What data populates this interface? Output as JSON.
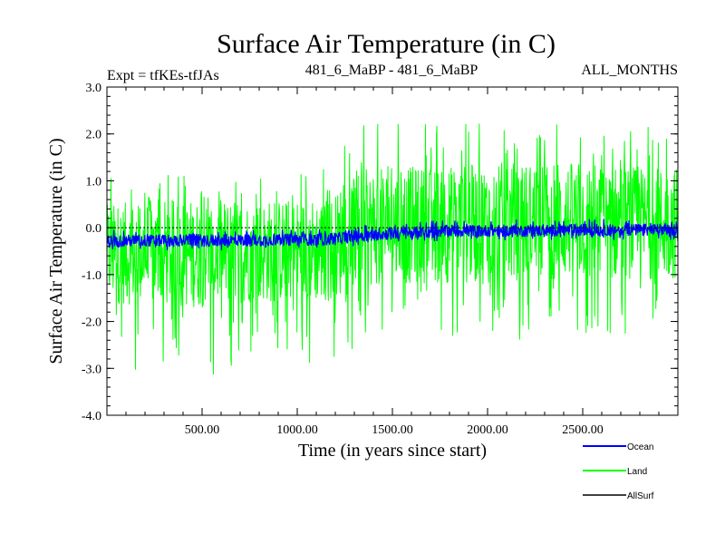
{
  "chart_data": {
    "type": "line",
    "title": "Surface Air Temperature (in C)",
    "subtitle_left": "Expt = tfKEs-tfJAs",
    "subtitle_center": "481_6_MaBP - 481_6_MaBP",
    "subtitle_right": "ALL_MONTHS",
    "xlabel": "Time (in years since start)",
    "ylabel": "Surface Air Temperature (in C)",
    "xlim": [
      0,
      3000
    ],
    "ylim": [
      -4.0,
      3.0
    ],
    "x_ticks": [
      500,
      1000,
      1500,
      2000,
      2500
    ],
    "x_tick_labels": [
      "500.00",
      "1000.00",
      "1500.00",
      "2000.00",
      "2500.00"
    ],
    "y_ticks": [
      3.0,
      2.0,
      1.0,
      0.0,
      -1.0,
      -2.0,
      -3.0,
      -4.0
    ],
    "y_tick_labels": [
      "3.0",
      "2.0",
      "1.0",
      "0.0",
      "-1.0",
      "-2.0",
      "-3.0",
      "-4.0"
    ],
    "zero_line": true,
    "legend_position": "bottom-right",
    "series": [
      {
        "name": "Land",
        "color": "#00ff00",
        "envelope": {
          "x": [
            0,
            250,
            500,
            750,
            1000,
            1200,
            1260,
            1500,
            1750,
            2000,
            2250,
            2500,
            2750,
            3000
          ],
          "mean": [
            -0.45,
            -0.45,
            -0.42,
            -0.42,
            -0.4,
            -0.4,
            -0.15,
            -0.1,
            -0.05,
            -0.05,
            -0.05,
            0.0,
            0.0,
            0.0
          ],
          "upper": [
            0.5,
            0.6,
            0.6,
            0.6,
            0.6,
            0.7,
            1.2,
            1.3,
            1.3,
            1.4,
            1.4,
            1.4,
            1.3,
            1.3
          ],
          "lower": [
            -1.6,
            -1.7,
            -1.7,
            -1.6,
            -1.6,
            -1.6,
            -1.3,
            -1.2,
            -1.2,
            -1.2,
            -1.1,
            -1.1,
            -1.1,
            -1.1
          ],
          "max": [
            1.3,
            1.1,
            1.2,
            1.1,
            1.2,
            1.3,
            2.2,
            2.3,
            2.3,
            2.4,
            2.3,
            2.4,
            2.2,
            2.1
          ],
          "min": [
            -3.0,
            -3.1,
            -3.2,
            -2.9,
            -3.1,
            -3.0,
            -2.6,
            -2.6,
            -2.5,
            -2.4,
            -2.4,
            -2.3,
            -2.3,
            -2.2
          ]
        }
      },
      {
        "name": "Ocean",
        "color": "#0000ff",
        "envelope": {
          "x": [
            0,
            250,
            500,
            750,
            1000,
            1200,
            1260,
            1500,
            1750,
            2000,
            2250,
            2500,
            2750,
            3000
          ],
          "mean": [
            -0.28,
            -0.27,
            -0.26,
            -0.26,
            -0.25,
            -0.25,
            -0.18,
            -0.12,
            -0.07,
            -0.06,
            -0.06,
            -0.04,
            -0.04,
            -0.05
          ],
          "upper": [
            -0.15,
            -0.15,
            -0.14,
            -0.14,
            -0.13,
            -0.12,
            -0.05,
            0.0,
            0.05,
            0.06,
            0.06,
            0.08,
            0.08,
            0.08
          ],
          "lower": [
            -0.42,
            -0.4,
            -0.4,
            -0.39,
            -0.38,
            -0.38,
            -0.32,
            -0.25,
            -0.2,
            -0.19,
            -0.19,
            -0.17,
            -0.17,
            -0.18
          ],
          "max": [
            -0.05,
            -0.05,
            -0.05,
            -0.05,
            -0.05,
            -0.04,
            0.05,
            0.1,
            0.15,
            0.18,
            0.16,
            0.18,
            0.18,
            0.17
          ],
          "min": [
            -0.5,
            -0.48,
            -0.48,
            -0.47,
            -0.46,
            -0.46,
            -0.4,
            -0.33,
            -0.28,
            -0.27,
            -0.27,
            -0.25,
            -0.26,
            -0.26
          ]
        }
      },
      {
        "name": "AllSurf",
        "color": "#000000"
      }
    ],
    "legend": [
      {
        "label": "Ocean",
        "color": "#0000ff"
      },
      {
        "label": "Land",
        "color": "#00ff00"
      },
      {
        "label": "AllSurf",
        "color": "#000000"
      }
    ]
  }
}
